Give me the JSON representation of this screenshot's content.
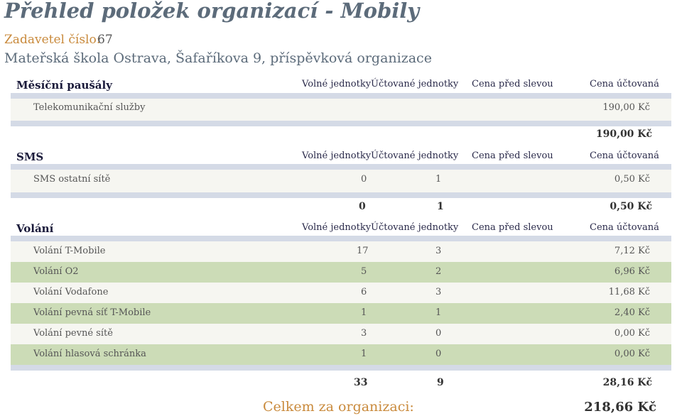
{
  "title": "Přehled položek organizací - Mobily",
  "zadavatel_label": "Zadavetel číslo:",
  "zadavatel_cislo": "67",
  "organizace": "Mateřská škola Ostrava, Šafaříkova 9, příspěvková organizace",
  "columns": {
    "volne": "Volné jednotky",
    "uctovane": "Účtované jednotky",
    "pred_slevou": "Cena před slevou",
    "uctovana": "Cena účtovaná"
  },
  "sections": {
    "pausaly": {
      "title": "Měsíční paušály",
      "rows": [
        {
          "name": "Telekomunikační služby",
          "volne": "",
          "uctovane": "",
          "cena": "190,00 Kč"
        }
      ],
      "total": {
        "volne": "",
        "uctovane": "",
        "cena": "190,00 Kč"
      }
    },
    "sms": {
      "title": "SMS",
      "rows": [
        {
          "name": "SMS ostatní sítě",
          "volne": "0",
          "uctovane": "1",
          "cena": "0,50 Kč"
        }
      ],
      "total": {
        "volne": "0",
        "uctovane": "1",
        "cena": "0,50 Kč"
      }
    },
    "volani": {
      "title": "Volání",
      "rows": [
        {
          "name": "Volání T-Mobile",
          "volne": "17",
          "uctovane": "3",
          "cena": "7,12 Kč"
        },
        {
          "name": "Volání O2",
          "volne": "5",
          "uctovane": "2",
          "cena": "6,96 Kč"
        },
        {
          "name": "Volání Vodafone",
          "volne": "6",
          "uctovane": "3",
          "cena": "11,68 Kč"
        },
        {
          "name": "Volání pevná síť T-Mobile",
          "volne": "1",
          "uctovane": "1",
          "cena": "2,40 Kč"
        },
        {
          "name": "Volání pevné sítě",
          "volne": "3",
          "uctovane": "0",
          "cena": "0,00 Kč"
        },
        {
          "name": "Volání hlasová schránka",
          "volne": "1",
          "uctovane": "0",
          "cena": "0,00 Kč"
        }
      ],
      "total": {
        "volne": "33",
        "uctovane": "9",
        "cena": "28,16 Kč"
      }
    }
  },
  "celkem_label": "Celkem za organizaci:",
  "celkem_value": "218,66 Kč"
}
